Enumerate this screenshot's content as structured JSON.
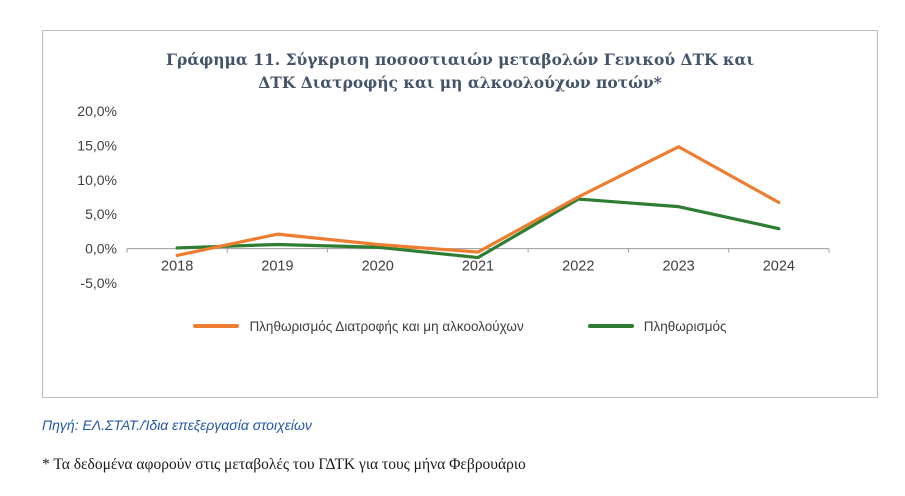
{
  "chart_data": {
    "type": "line",
    "title": "Γράφημα 11. Σύγκριση ποσοστιαιών μεταβολών Γενικού ΔΤΚ και ΔΤΚ Διατροφής και μη αλκοολούχων ποτών*",
    "title_lines": [
      "Γράφημα 11. Σύγκριση ποσοστιαιών μεταβολών Γενικού ΔΤΚ και",
      "ΔΤΚ Διατροφής και μη αλκοολούχων ποτών*"
    ],
    "categories": [
      "2018",
      "2019",
      "2020",
      "2021",
      "2022",
      "2023",
      "2024"
    ],
    "series": [
      {
        "name": "Πληθωρισμός Διατροφής και μη αλκοολούχων",
        "color": "#ED7D31",
        "values": [
          -1.0,
          2.1,
          0.6,
          -0.5,
          7.5,
          14.8,
          6.7
        ]
      },
      {
        "name": "Πληθωρισμός",
        "color": "#2E7D32",
        "values": [
          0.1,
          0.6,
          0.2,
          -1.3,
          7.2,
          6.1,
          2.9
        ]
      }
    ],
    "ylim": [
      -5,
      20
    ],
    "y_ticks": [
      {
        "value": 20,
        "label": "20,0%"
      },
      {
        "value": 15,
        "label": "15,0%"
      },
      {
        "value": 10,
        "label": "10,0%"
      },
      {
        "value": 5,
        "label": "5,0%"
      },
      {
        "value": 0,
        "label": "0,0%"
      },
      {
        "value": -5,
        "label": "-5,0%"
      }
    ],
    "grid": false,
    "legend_position": "bottom",
    "xlabel": "",
    "ylabel": ""
  },
  "source": "Πηγή: ΕΛ.ΣΤΑΤ./Ίδια επεξεργασία στοιχείων",
  "footnote": "* Τα δεδομένα αφορούν στις μεταβολές του ΓΔΤΚ για τους μήνα Φεβρουάριο"
}
